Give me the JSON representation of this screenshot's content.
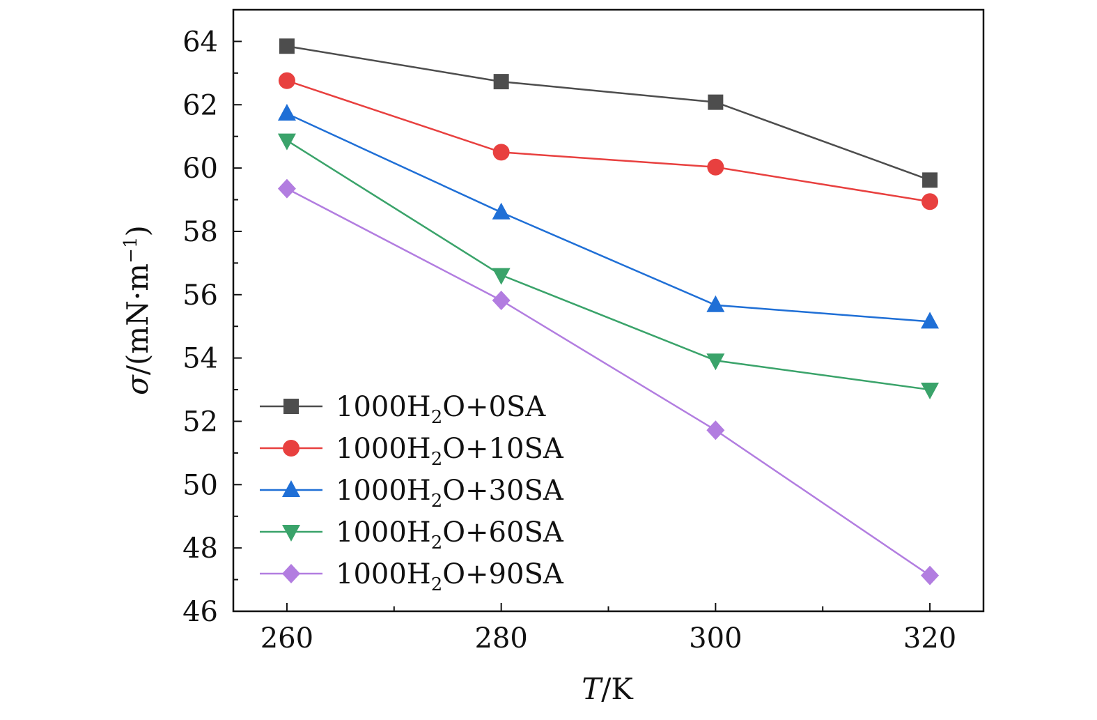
{
  "chart_data": {
    "type": "line",
    "title": "",
    "x": [
      260,
      280,
      300,
      320
    ],
    "xlabel": {
      "var": "T",
      "unit": "/K"
    },
    "ylabel": {
      "var": "σ",
      "unit": "/(mN·m",
      "exp": "−1",
      "close": ")"
    },
    "xlim": [
      255,
      325
    ],
    "ylim": [
      46,
      65
    ],
    "xticks": [
      260,
      280,
      300,
      320
    ],
    "yticks": [
      46,
      48,
      50,
      52,
      54,
      56,
      58,
      60,
      62,
      64
    ],
    "grid": false,
    "legend_position": "bottom-left",
    "series": [
      {
        "name": "1000H2O+0SA",
        "label_pre": "1000H",
        "label_sub": "2",
        "label_post": "O+0SA",
        "color": "#4d4d4d",
        "marker": "square",
        "values": [
          63.85,
          62.73,
          62.08,
          59.62
        ]
      },
      {
        "name": "1000H2O+10SA",
        "label_pre": "1000H",
        "label_sub": "2",
        "label_post": "O+10SA",
        "color": "#e8403f",
        "marker": "circle",
        "values": [
          62.76,
          60.5,
          60.03,
          58.94
        ]
      },
      {
        "name": "1000H2O+30SA",
        "label_pre": "1000H",
        "label_sub": "2",
        "label_post": "O+30SA",
        "color": "#1f6fd6",
        "marker": "triangle-up",
        "values": [
          61.72,
          58.6,
          55.67,
          55.15
        ]
      },
      {
        "name": "1000H2O+60SA",
        "label_pre": "1000H",
        "label_sub": "2",
        "label_post": "O+60SA",
        "color": "#3aa36a",
        "marker": "triangle-down",
        "values": [
          60.87,
          56.62,
          53.92,
          53.0
        ]
      },
      {
        "name": "1000H2O+90SA",
        "label_pre": "1000H",
        "label_sub": "2",
        "label_post": "O+90SA",
        "color": "#b27de0",
        "marker": "diamond",
        "values": [
          59.35,
          55.82,
          51.72,
          47.13
        ]
      }
    ]
  }
}
